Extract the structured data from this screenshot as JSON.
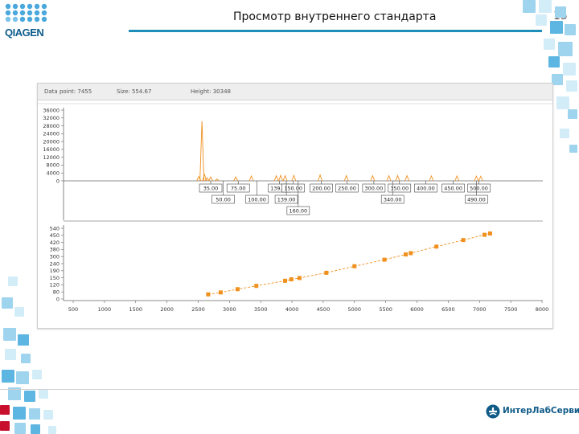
{
  "header": {
    "logo_text": "QIAGEN",
    "title": "Просмотр внутреннего стандарта",
    "page_number": "15"
  },
  "info_bar": {
    "data_point": "Data point: 7455",
    "size": "Size: 554.67",
    "height": "Height: 30348"
  },
  "colors": {
    "accent": "#1f8fb9",
    "series": "#f0901e",
    "logo_blue": "#0f5b88",
    "mosaic_light": "#d3edf8",
    "mosaic_mid": "#9fd4ee",
    "mosaic_dark": "#5cb6e1",
    "mosaic_red": "#c8102e"
  },
  "footer": {
    "company": "ИнтерЛабСервис"
  },
  "chart_data": [
    {
      "type": "line",
      "panel": "electropherogram",
      "ylim": [
        0,
        36000
      ],
      "y_ticks": [
        "36000",
        "32000",
        "28000",
        "24000",
        "20000",
        "16000",
        "12000",
        "8000",
        "4000",
        "0"
      ],
      "peaks": [
        {
          "x": 2510,
          "y": 2200
        },
        {
          "x": 2560,
          "y": 30348
        },
        {
          "x": 2600,
          "y": 3200
        },
        {
          "x": 2640,
          "y": 1500
        },
        {
          "x": 2700,
          "y": 2000
        },
        {
          "x": 2800,
          "y": 900
        },
        {
          "x": 3100,
          "y": 2000
        },
        {
          "x": 3350,
          "y": 2500
        },
        {
          "x": 3750,
          "y": 2600
        },
        {
          "x": 3820,
          "y": 2800
        },
        {
          "x": 3890,
          "y": 2600
        },
        {
          "x": 4030,
          "y": 2800
        },
        {
          "x": 4450,
          "y": 3000
        },
        {
          "x": 4870,
          "y": 2700
        },
        {
          "x": 5290,
          "y": 2600
        },
        {
          "x": 5550,
          "y": 2600
        },
        {
          "x": 5690,
          "y": 2700
        },
        {
          "x": 5840,
          "y": 2600
        },
        {
          "x": 6230,
          "y": 2500
        },
        {
          "x": 6640,
          "y": 2500
        },
        {
          "x": 6950,
          "y": 2400
        },
        {
          "x": 7020,
          "y": 2300
        }
      ],
      "size_labels_row1": [
        {
          "x": 2700,
          "label": "35.00"
        },
        {
          "x": 3140,
          "label": "75.00"
        },
        {
          "x": 3800,
          "label": "139.00"
        },
        {
          "x": 4020,
          "label": "150.00"
        },
        {
          "x": 4470,
          "label": "200.00"
        },
        {
          "x": 4880,
          "label": "250.00"
        },
        {
          "x": 5310,
          "label": "300.00"
        },
        {
          "x": 5720,
          "label": "350.00"
        },
        {
          "x": 6140,
          "label": "400.00"
        },
        {
          "x": 6580,
          "label": "450.00"
        },
        {
          "x": 6990,
          "label": "500.00"
        }
      ],
      "size_labels_row2": [
        {
          "x": 2900,
          "label": "50.00"
        },
        {
          "x": 3440,
          "label": "100.00"
        },
        {
          "x": 3910,
          "label": "139.00"
        },
        {
          "x": 5610,
          "label": "340.00"
        },
        {
          "x": 6950,
          "label": "490.00"
        }
      ],
      "size_labels_row3": [
        {
          "x": 4100,
          "label": "160.00"
        }
      ]
    },
    {
      "type": "line",
      "panel": "sizing-curve",
      "xlim": [
        500,
        8000
      ],
      "x_ticks": [
        "500",
        "1000",
        "1500",
        "2000",
        "2500",
        "3000",
        "3500",
        "4000",
        "4500",
        "5000",
        "5500",
        "6000",
        "6500",
        "7000",
        "7500",
        "8000"
      ],
      "ylim": [
        0,
        540
      ],
      "y_ticks": [
        "540",
        "450",
        "420",
        "380",
        "300",
        "240",
        "190",
        "150",
        "120",
        "80",
        "0"
      ],
      "points": [
        {
          "x": 2660,
          "y": 35
        },
        {
          "x": 2860,
          "y": 50
        },
        {
          "x": 3130,
          "y": 75
        },
        {
          "x": 3430,
          "y": 100
        },
        {
          "x": 3890,
          "y": 139
        },
        {
          "x": 3990,
          "y": 150
        },
        {
          "x": 4120,
          "y": 160
        },
        {
          "x": 4550,
          "y": 200
        },
        {
          "x": 5000,
          "y": 250
        },
        {
          "x": 5480,
          "y": 300
        },
        {
          "x": 5820,
          "y": 340
        },
        {
          "x": 5900,
          "y": 350
        },
        {
          "x": 6310,
          "y": 400
        },
        {
          "x": 6740,
          "y": 450
        },
        {
          "x": 7080,
          "y": 490
        },
        {
          "x": 7170,
          "y": 500
        }
      ]
    }
  ]
}
